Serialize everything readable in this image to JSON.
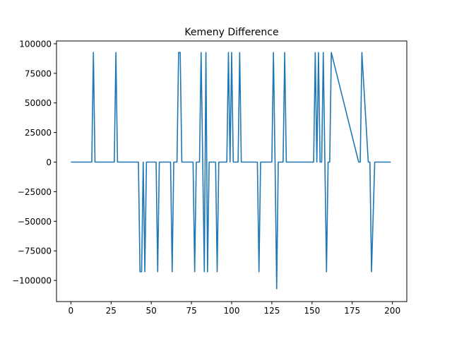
{
  "chart_data": {
    "type": "line",
    "title": "Kemeny Difference",
    "xlabel": "",
    "ylabel": "",
    "xlim": [
      -8.95,
      208.95
    ],
    "ylim": [
      -117850,
      102350
    ],
    "xticks": [
      0,
      25,
      50,
      75,
      100,
      125,
      150,
      175,
      200
    ],
    "xtick_labels": [
      "0",
      "25",
      "50",
      "75",
      "100",
      "125",
      "150",
      "175",
      "200"
    ],
    "yticks": [
      -100000,
      -75000,
      -50000,
      -25000,
      0,
      25000,
      50000,
      75000,
      100000
    ],
    "ytick_labels": [
      "−100000",
      "−75000",
      "−50000",
      "−25000",
      "0",
      "25000",
      "50000",
      "75000",
      "100000"
    ],
    "grid": false,
    "line_color": "#1f77b4",
    "series": [
      {
        "name": "",
        "x": [
          0,
          13,
          14,
          15,
          27,
          28,
          29,
          42,
          43,
          44,
          45,
          46,
          47,
          53,
          54,
          55,
          62,
          63,
          64,
          66,
          67,
          68,
          69,
          76,
          77,
          78,
          80,
          81,
          82,
          83,
          84,
          85,
          86,
          90,
          91,
          92,
          97,
          98,
          99,
          100,
          101,
          104,
          105,
          106,
          116,
          117,
          118,
          125,
          126,
          127,
          128,
          129,
          130,
          132,
          133,
          134,
          151,
          152,
          153,
          154,
          155,
          156,
          157,
          158,
          159,
          160,
          161,
          162,
          179,
          180,
          181,
          185,
          186,
          187,
          189,
          190,
          191,
          199
        ],
        "y": [
          0,
          0,
          92600,
          0,
          0,
          92600,
          0,
          0,
          -92600,
          -92600,
          0,
          -92600,
          0,
          0,
          -92600,
          0,
          0,
          -92600,
          0,
          0,
          92600,
          92600,
          0,
          0,
          -92600,
          0,
          0,
          92600,
          0,
          -92600,
          92600,
          -92600,
          0,
          0,
          -92600,
          0,
          0,
          92600,
          0,
          92600,
          0,
          0,
          92600,
          0,
          0,
          -92600,
          0,
          0,
          92600,
          0,
          -107000,
          0,
          0,
          0,
          92600,
          0,
          0,
          92600,
          0,
          92600,
          0,
          0,
          92600,
          0,
          -92600,
          0,
          0,
          92600,
          0,
          0,
          92600,
          0,
          0,
          -92600,
          0,
          0,
          0,
          0
        ]
      }
    ]
  }
}
